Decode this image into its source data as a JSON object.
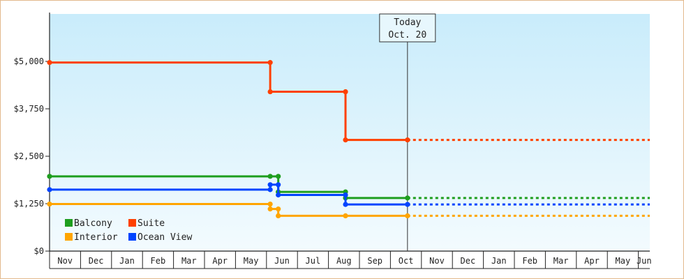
{
  "chart_data": {
    "type": "line",
    "title": "",
    "xlabel": "",
    "ylabel": "",
    "ylim": [
      0,
      6250
    ],
    "y_ticks": [
      0,
      1250,
      2500,
      3750,
      5000
    ],
    "y_tick_labels": [
      "$0",
      "$1,250",
      "$2,500",
      "$3,750",
      "$5,000"
    ],
    "months": [
      "Nov",
      "Dec",
      "Jan",
      "Feb",
      "Mar",
      "Apr",
      "May",
      "Jun",
      "Jul",
      "Aug",
      "Sep",
      "Oct",
      "Nov",
      "Dec",
      "Jan",
      "Feb",
      "Mar",
      "Apr",
      "May",
      "Jun"
    ],
    "x_range_months": [
      0,
      19.35
    ],
    "today": {
      "line1": "Today",
      "line2": "Oct. 20",
      "x": 11.55
    },
    "grid": false,
    "legend_position": "bottom-left",
    "series": [
      {
        "name": "Balcony",
        "color": "#1e9e1e",
        "points": [
          [
            0,
            1970
          ],
          [
            7.12,
            1970
          ],
          [
            7.38,
            1970
          ],
          [
            7.38,
            1560
          ],
          [
            9.55,
            1560
          ],
          [
            9.55,
            1400
          ],
          [
            11.55,
            1400
          ]
        ],
        "projection": 1400
      },
      {
        "name": "Suite",
        "color": "#ff4000",
        "points": [
          [
            0,
            4970
          ],
          [
            7.12,
            4970
          ],
          [
            7.12,
            4200
          ],
          [
            9.55,
            4200
          ],
          [
            9.55,
            2930
          ],
          [
            11.55,
            2930
          ]
        ],
        "projection": 2930
      },
      {
        "name": "Interior",
        "color": "#ffa500",
        "points": [
          [
            0,
            1240
          ],
          [
            7.12,
            1240
          ],
          [
            7.12,
            1110
          ],
          [
            7.38,
            1110
          ],
          [
            7.38,
            930
          ],
          [
            9.55,
            930
          ],
          [
            11.55,
            930
          ]
        ],
        "projection": 930
      },
      {
        "name": "Ocean View",
        "color": "#0044ff",
        "points": [
          [
            0,
            1620
          ],
          [
            7.12,
            1620
          ],
          [
            7.12,
            1750
          ],
          [
            7.38,
            1750
          ],
          [
            7.38,
            1480
          ],
          [
            9.55,
            1480
          ],
          [
            9.55,
            1230
          ],
          [
            11.55,
            1230
          ]
        ],
        "projection": 1230
      }
    ]
  }
}
